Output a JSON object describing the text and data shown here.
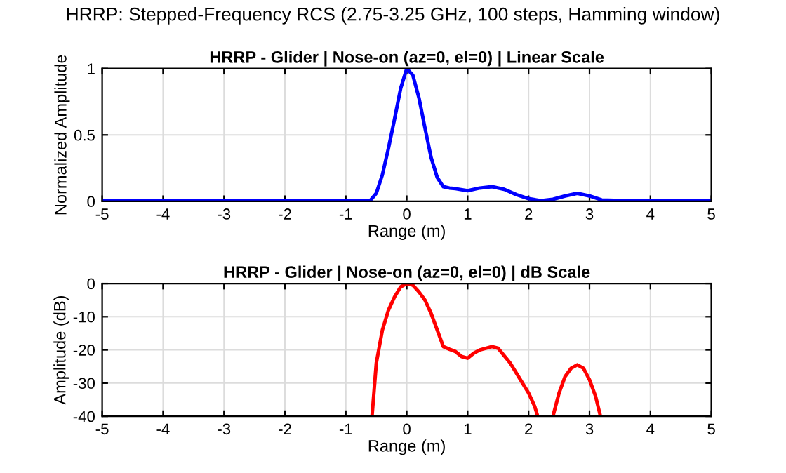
{
  "chart_data": [
    {
      "type": "line",
      "title": "HRRP - Glider | Nose-on (az=0, el=0) | Linear Scale",
      "xlabel": "Range (m)",
      "ylabel": "Normalized Amplitude",
      "annotations": [
        "HRRP: Stepped-Frequency RCS (2.75-3.25 GHz, 100 steps, Hamming window)"
      ],
      "series": [
        {
          "color": "#0000ff",
          "x": [
            -5,
            -4,
            -3,
            -2,
            -1,
            -0.6,
            -0.5,
            -0.4,
            -0.3,
            -0.2,
            -0.1,
            0,
            0.1,
            0.2,
            0.3,
            0.4,
            0.5,
            0.6,
            0.7,
            0.8,
            1.0,
            1.2,
            1.4,
            1.6,
            1.8,
            2.0,
            2.2,
            2.4,
            2.6,
            2.8,
            3.0,
            3.2,
            3.5,
            4,
            5
          ],
          "values": [
            0.005,
            0.005,
            0.005,
            0.005,
            0.005,
            0.005,
            0.06,
            0.2,
            0.4,
            0.62,
            0.85,
            1.0,
            0.95,
            0.78,
            0.55,
            0.33,
            0.18,
            0.11,
            0.1,
            0.095,
            0.08,
            0.1,
            0.11,
            0.09,
            0.05,
            0.02,
            0.005,
            0.015,
            0.04,
            0.06,
            0.04,
            0.01,
            0.005,
            0.005,
            0.005
          ]
        }
      ],
      "xlim": [
        -5,
        5
      ],
      "ylim": [
        0,
        1
      ],
      "xticks": [
        -5,
        -4,
        -3,
        -2,
        -1,
        0,
        1,
        2,
        3,
        4,
        5
      ],
      "yticks": [
        0,
        0.5,
        1
      ],
      "grid": true
    },
    {
      "type": "line",
      "title": "HRRP - Glider | Nose-on (az=0, el=0) | dB Scale",
      "xlabel": "Range (m)",
      "ylabel": "Amplitude (dB)",
      "series": [
        {
          "color": "#ff0000",
          "x": [
            -0.57,
            -0.5,
            -0.4,
            -0.3,
            -0.2,
            -0.1,
            0,
            0.1,
            0.2,
            0.3,
            0.4,
            0.5,
            0.6,
            0.7,
            0.8,
            0.9,
            1.0,
            1.1,
            1.2,
            1.4,
            1.5,
            1.7,
            1.9,
            2.0,
            2.1,
            2.15,
            2.3,
            2.4,
            2.5,
            2.6,
            2.7,
            2.8,
            2.9,
            3.0,
            3.1,
            3.18
          ],
          "values": [
            -40,
            -24,
            -14,
            -8,
            -4,
            -1,
            0,
            -0.5,
            -2.5,
            -5,
            -9,
            -14,
            -19,
            -19.8,
            -20.5,
            -22,
            -22.5,
            -21,
            -20,
            -19,
            -19.5,
            -24,
            -30,
            -33,
            -37,
            -40,
            null,
            -40,
            -33,
            -28,
            -25.5,
            -24.5,
            -25.5,
            -29,
            -34,
            -40
          ]
        }
      ],
      "xlim": [
        -5,
        5
      ],
      "ylim": [
        -40,
        0
      ],
      "xticks": [
        -5,
        -4,
        -3,
        -2,
        -1,
        0,
        1,
        2,
        3,
        4,
        5
      ],
      "yticks": [
        -40,
        -30,
        -20,
        -10,
        0
      ],
      "grid": true
    }
  ]
}
